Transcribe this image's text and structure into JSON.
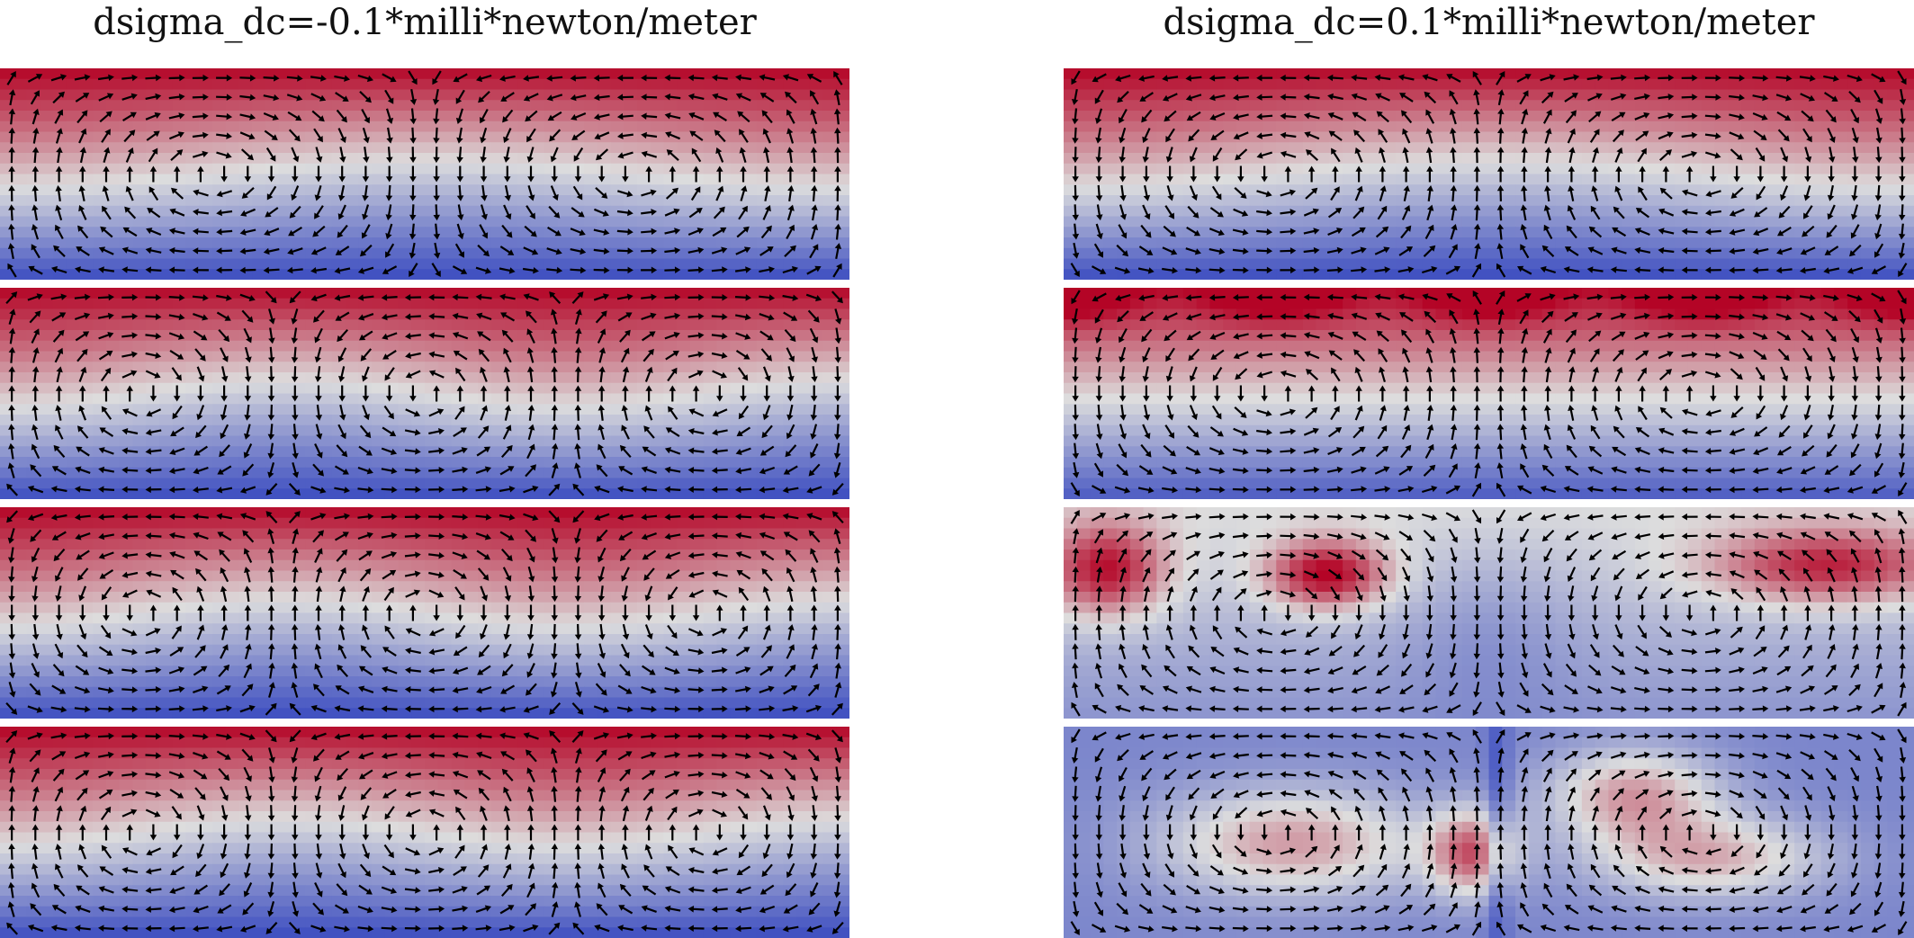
{
  "figure": {
    "columns": [
      {
        "title": "dsigma_dc=-0.1*milli*newton/meter",
        "panels": [
          {
            "pattern": "stratified",
            "cells": 2,
            "start_rotation": "clockwise"
          },
          {
            "pattern": "stratified",
            "cells": 3,
            "start_rotation": "clockwise"
          },
          {
            "pattern": "stratified",
            "cells": 3,
            "start_rotation": "counterclockwise"
          },
          {
            "pattern": "stratified",
            "cells": 3,
            "start_rotation": "clockwise"
          }
        ]
      },
      {
        "title": "dsigma_dc=0.1*milli*newton/meter",
        "panels": [
          {
            "pattern": "stratified",
            "cells": 2,
            "start_rotation": "counterclockwise"
          },
          {
            "pattern": "mixing",
            "cells": 2,
            "start_rotation": "counterclockwise"
          },
          {
            "pattern": "plumes",
            "cells": 2,
            "start_rotation": "clockwise"
          },
          {
            "pattern": "inverted",
            "cells": 2,
            "start_rotation": "counterclockwise"
          }
        ]
      }
    ],
    "colormap": {
      "name": "coolwarm",
      "high": "#b40426",
      "mid": "#dddddd",
      "low": "#3b4cc0"
    },
    "arrow_color": "#000000",
    "panel_separator_color": "#ffffff"
  }
}
